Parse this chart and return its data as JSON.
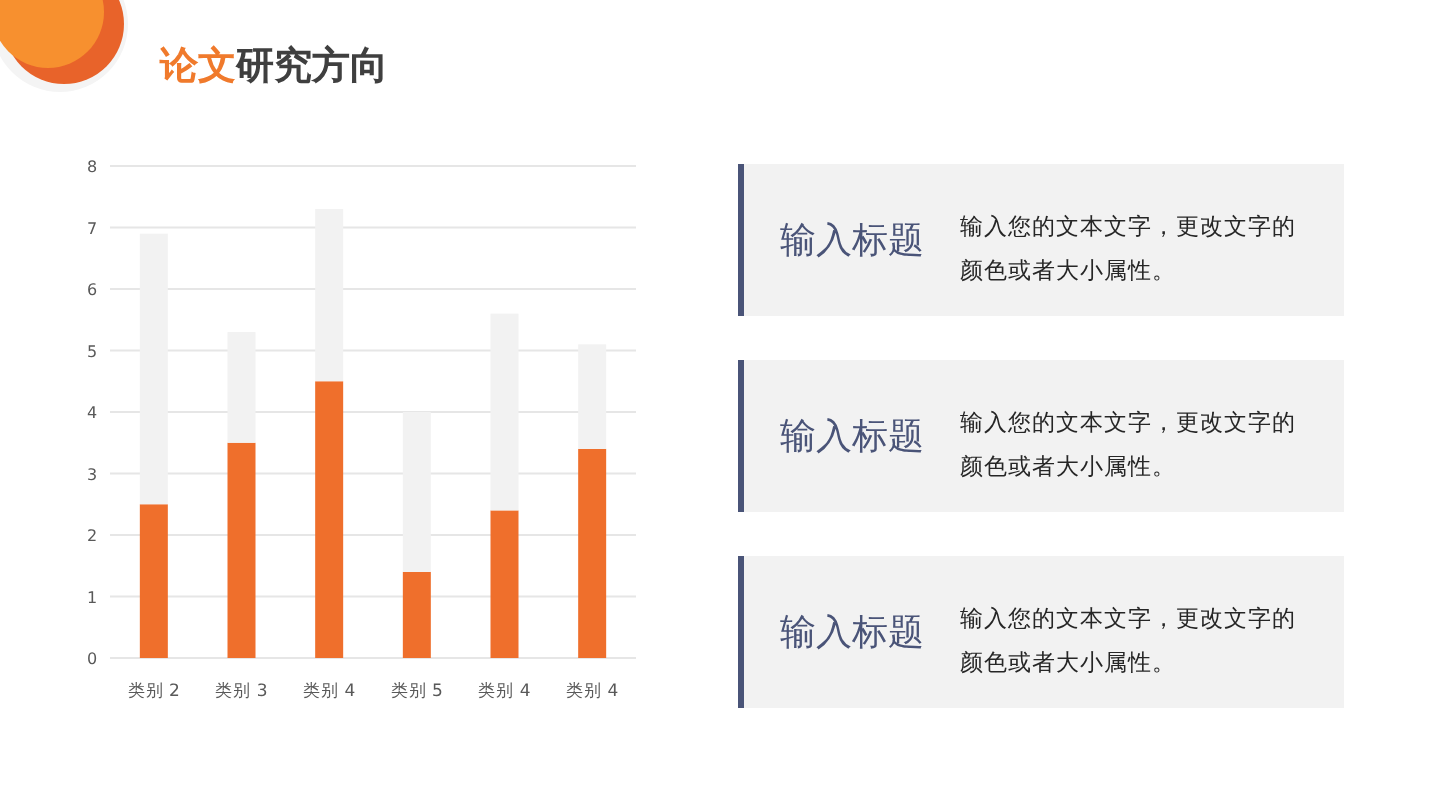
{
  "chart_data": [
    {
      "type": "bar",
      "title": "论文研究方向",
      "categories": [
        "类别 2",
        "类别 3",
        "类别 4",
        "类别 5",
        "类别 4",
        "类别 4"
      ],
      "stacked": true,
      "series": [
        {
          "color": "#ef6f2c",
          "values": [
            2.5,
            3.5,
            4.5,
            1.4,
            2.4,
            3.4
          ]
        },
        {
          "color": "#f2f2f2",
          "values": [
            4.4,
            1.8,
            2.8,
            2.6,
            3.2,
            1.7
          ]
        }
      ],
      "ylim": [
        0,
        8
      ],
      "yticks": [
        0,
        1,
        2,
        3,
        4,
        5,
        6,
        7,
        8
      ],
      "grid": "y"
    },
    {
      "type": "other",
      "title": "输入标题",
      "annotations": [
        "输入您的文本文字，更改文字的颜色或者大小属性。"
      ]
    },
    {
      "type": "other",
      "title": "输入标题",
      "annotations": [
        "输入您的文本文字，更改文字的颜色或者大小属性。"
      ]
    },
    {
      "type": "other",
      "title": "输入标题",
      "annotations": [
        "输入您的文本文字，更改文字的颜色或者大小属性。"
      ]
    }
  ]
}
